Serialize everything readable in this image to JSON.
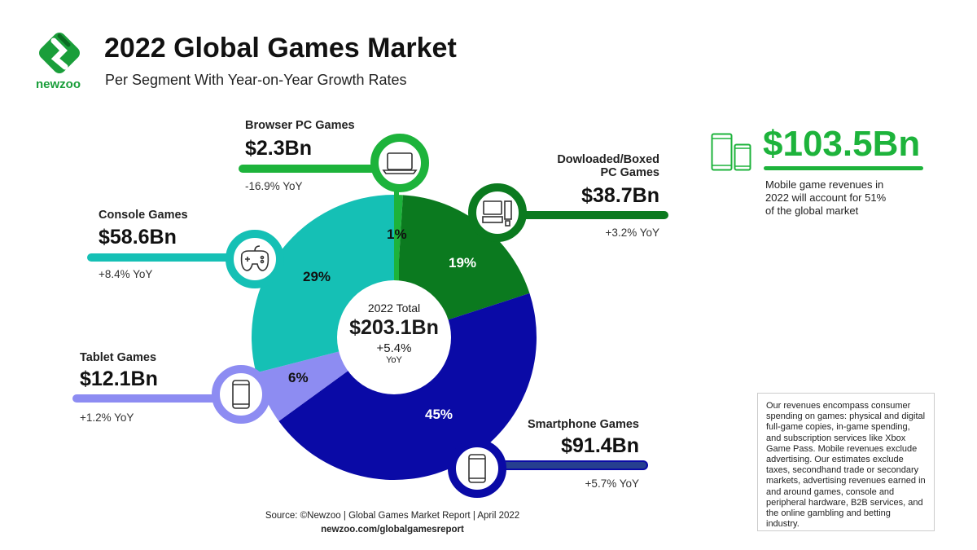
{
  "header": {
    "title": "2022 Global Games Market",
    "subtitle": "Per Segment With Year-on-Year Growth Rates",
    "brand": "newzoo"
  },
  "chart_data": {
    "type": "pie",
    "center": {
      "label": "2022 Total",
      "value": "$203.1Bn",
      "growth": "+5.4%",
      "growth_unit": "YoY"
    },
    "segments": [
      {
        "name": "Browser PC Games",
        "value": 2.3,
        "value_label": "$2.3Bn",
        "share": 1,
        "share_label": "1%",
        "yoy": "-16.9% YoY",
        "color": "#1db33b",
        "icon": "laptop-icon"
      },
      {
        "name": "Dowloaded/Boxed PC Games",
        "name_line1": "Dowloaded/Boxed",
        "name_line2": "PC Games",
        "value": 38.7,
        "value_label": "$38.7Bn",
        "share": 19,
        "share_label": "19%",
        "yoy": "+3.2% YoY",
        "color": "#0b7a1f",
        "icon": "desktop-pc-icon"
      },
      {
        "name": "Smartphone Games",
        "value": 91.4,
        "value_label": "$91.4Bn",
        "share": 45,
        "share_label": "45%",
        "yoy": "+5.7% YoY",
        "color": "#0a0aa6",
        "icon": "smartphone-icon"
      },
      {
        "name": "Tablet Games",
        "value": 12.1,
        "value_label": "$12.1Bn",
        "share": 6,
        "share_label": "6%",
        "yoy": "+1.2% YoY",
        "color": "#8d8cf2",
        "icon": "tablet-icon"
      },
      {
        "name": "Console Games",
        "value": 58.6,
        "value_label": "$58.6Bn",
        "share": 29,
        "share_label": "29%",
        "yoy": "+8.4% YoY",
        "color": "#15c0b5",
        "icon": "gamepad-icon"
      }
    ]
  },
  "mobile": {
    "value": "$103.5Bn",
    "text_line1": "Mobile game revenues in",
    "text_line2": "2022 will account for 51%",
    "text_line3": "of the global market",
    "color": "#1db33b"
  },
  "note": "Our revenues encompass consumer spending on games: physical and digital full-game copies, in-game spending, and subscription services like Xbox Game Pass. Mobile revenues exclude advertising. Our estimates exclude taxes, secondhand trade or secondary markets, advertising revenues earned in and around games, console and peripheral hardware, B2B services, and the online gambling and betting industry.",
  "footer": {
    "source": "Source: ©Newzoo | Global Games Market Report | April 2022",
    "url": "newzoo.com/globalgamesreport"
  }
}
